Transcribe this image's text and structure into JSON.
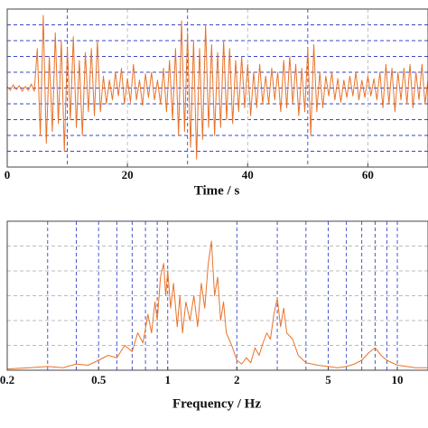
{
  "chart_data": [
    {
      "type": "line",
      "xlabel": "Time / s",
      "color": "#e8732a",
      "xlim": [
        0,
        70
      ],
      "ylim": [
        -1,
        1
      ],
      "xticks": [
        0,
        20,
        40,
        60
      ],
      "xgrid": [
        10,
        30,
        50,
        70
      ],
      "ygrid": [
        -0.8,
        -0.6,
        -0.4,
        -0.2,
        0,
        0.2,
        0.4,
        0.6,
        0.8
      ],
      "x": [
        0,
        0.5,
        1,
        1.5,
        2,
        2.5,
        3,
        3.5,
        4,
        4.5,
        5,
        5.5,
        6,
        6.5,
        7,
        7.5,
        8,
        8.5,
        9,
        9.5,
        10,
        10.5,
        11,
        11.5,
        12,
        12.5,
        13,
        13.5,
        14,
        14.5,
        15,
        15.5,
        16,
        16.5,
        17,
        17.5,
        18,
        18.5,
        19,
        19.5,
        20,
        20.5,
        21,
        21.5,
        22,
        22.5,
        23,
        23.5,
        24,
        24.5,
        25,
        25.5,
        26,
        26.5,
        27,
        27.5,
        28,
        28.5,
        29,
        29.5,
        30,
        30.5,
        31,
        31.5,
        32,
        32.5,
        33,
        33.5,
        34,
        34.5,
        35,
        35.5,
        36,
        36.5,
        37,
        37.5,
        38,
        38.5,
        39,
        39.5,
        40,
        40.5,
        41,
        41.5,
        42,
        42.5,
        43,
        43.5,
        44,
        44.5,
        45,
        45.5,
        46,
        46.5,
        47,
        47.5,
        48,
        48.5,
        49,
        49.5,
        50,
        50.5,
        51,
        51.5,
        52,
        52.5,
        53,
        53.5,
        54,
        54.5,
        55,
        55.5,
        56,
        56.5,
        57,
        57.5,
        58,
        58.5,
        59,
        59.5,
        60,
        60.5,
        61,
        61.5,
        62,
        62.5,
        63,
        63.5,
        64,
        64.5,
        65,
        65.5,
        66,
        66.5,
        67,
        67.5,
        68,
        68.5,
        69,
        69.5,
        70
      ],
      "values": [
        0.02,
        -0.03,
        0.04,
        -0.02,
        0.03,
        -0.04,
        0.02,
        -0.03,
        0.05,
        -0.04,
        0.5,
        -0.6,
        0.92,
        -0.7,
        0.4,
        -0.55,
        0.7,
        -0.45,
        0.6,
        -0.8,
        0.5,
        -0.4,
        0.65,
        -0.5,
        0.35,
        -0.6,
        0.45,
        -0.3,
        0.5,
        -0.35,
        0.6,
        -0.3,
        0.15,
        -0.2,
        0.1,
        -0.15,
        0.2,
        -0.1,
        0.25,
        -0.2,
        0.12,
        -0.18,
        0.3,
        -0.15,
        0.1,
        -0.22,
        0.18,
        -0.12,
        0.2,
        -0.15,
        0.1,
        -0.2,
        0.25,
        -0.3,
        0.35,
        -0.4,
        0.5,
        -0.6,
        0.85,
        -0.55,
        0.7,
        -0.75,
        0.6,
        -0.9,
        0.5,
        -0.65,
        0.8,
        -0.5,
        0.55,
        -0.6,
        0.45,
        -0.5,
        0.6,
        -0.4,
        0.5,
        -0.45,
        0.35,
        -0.3,
        0.4,
        -0.25,
        0.3,
        -0.35,
        0.2,
        -0.25,
        0.3,
        -0.2,
        0.15,
        -0.2,
        0.25,
        -0.15,
        0.2,
        -0.3,
        0.35,
        -0.25,
        0.4,
        -0.2,
        0.3,
        -0.35,
        0.25,
        -0.3,
        0.5,
        -0.6,
        0.55,
        -0.3,
        0.2,
        -0.25,
        0.15,
        -0.1,
        0.2,
        -0.15,
        0.12,
        -0.18,
        0.1,
        -0.12,
        0.15,
        -0.1,
        0.2,
        -0.15,
        0.1,
        -0.12,
        0.15,
        -0.1,
        0.12,
        -0.15,
        0.2,
        -0.25,
        0.3,
        -0.2,
        0.25,
        -0.3,
        0.2,
        -0.15,
        0.25,
        -0.2,
        0.3,
        -0.25,
        0.2,
        -0.15,
        0.3,
        -0.2,
        0.1
      ]
    },
    {
      "type": "line",
      "xlabel": "Frequency / Hz",
      "color": "#e8732a",
      "xscale": "log",
      "xlim": [
        0.2,
        13.6
      ],
      "ylim": [
        0,
        1.2
      ],
      "xticks": [
        0.2,
        0.5,
        1,
        2,
        5,
        10
      ],
      "xgrid": [
        0.3,
        0.4,
        0.6,
        0.7,
        0.8,
        0.9,
        3,
        4,
        6,
        7,
        8,
        9
      ],
      "ygrid": [
        0.2,
        0.4,
        0.6,
        0.8,
        1.0
      ],
      "x": [
        0.2,
        0.25,
        0.3,
        0.35,
        0.4,
        0.45,
        0.5,
        0.55,
        0.6,
        0.65,
        0.7,
        0.74,
        0.78,
        0.82,
        0.85,
        0.88,
        0.9,
        0.93,
        0.96,
        0.98,
        1.0,
        1.03,
        1.06,
        1.1,
        1.13,
        1.16,
        1.2,
        1.25,
        1.3,
        1.35,
        1.4,
        1.45,
        1.5,
        1.55,
        1.6,
        1.65,
        1.7,
        1.75,
        1.8,
        1.9,
        2.0,
        2.1,
        2.2,
        2.3,
        2.4,
        2.5,
        2.6,
        2.7,
        2.8,
        2.9,
        3.0,
        3.1,
        3.2,
        3.3,
        3.5,
        3.7,
        4.0,
        4.5,
        5.0,
        5.5,
        6.0,
        6.5,
        7.0,
        7.5,
        8.0,
        8.5,
        9.0,
        10.0,
        11,
        12,
        13.5
      ],
      "values": [
        0.01,
        0.02,
        0.03,
        0.02,
        0.05,
        0.04,
        0.08,
        0.12,
        0.1,
        0.2,
        0.15,
        0.3,
        0.22,
        0.45,
        0.3,
        0.55,
        0.4,
        0.75,
        0.86,
        0.6,
        0.8,
        0.5,
        0.7,
        0.35,
        0.6,
        0.3,
        0.55,
        0.4,
        0.6,
        0.35,
        0.7,
        0.5,
        0.85,
        1.04,
        0.6,
        0.75,
        0.4,
        0.55,
        0.3,
        0.2,
        0.08,
        0.05,
        0.1,
        0.06,
        0.18,
        0.12,
        0.22,
        0.3,
        0.25,
        0.45,
        0.58,
        0.35,
        0.5,
        0.3,
        0.25,
        0.12,
        0.06,
        0.04,
        0.03,
        0.02,
        0.03,
        0.05,
        0.08,
        0.14,
        0.18,
        0.12,
        0.08,
        0.04,
        0.03,
        0.02,
        0.02
      ]
    }
  ]
}
